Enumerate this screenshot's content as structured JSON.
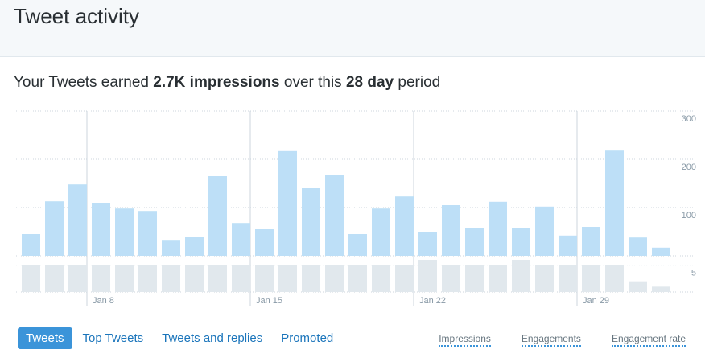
{
  "header": {
    "title": "Tweet activity"
  },
  "summary": {
    "prefix": "Your Tweets earned",
    "impressions": "2.7K impressions",
    "middle": "over this",
    "period": "28 day",
    "suffix": "period"
  },
  "chart_data": [
    {
      "type": "bar",
      "categories": [
        null,
        null,
        null,
        "Jan 8",
        null,
        null,
        null,
        null,
        null,
        null,
        "Jan 15",
        null,
        null,
        null,
        null,
        null,
        null,
        "Jan 22",
        null,
        null,
        null,
        null,
        null,
        null,
        "Jan 29",
        null,
        null,
        null
      ],
      "values": [
        45,
        113,
        148,
        110,
        98,
        93,
        33,
        40,
        165,
        68,
        55,
        217,
        140,
        168,
        45,
        98,
        123,
        50,
        105,
        57,
        112,
        57,
        102,
        42,
        60,
        218,
        38,
        17
      ],
      "color": "#bddff7",
      "ylim": [
        0,
        300
      ],
      "yticks": [
        100,
        200,
        300
      ],
      "grid": true
    },
    {
      "type": "bar",
      "values": [
        5,
        5,
        5,
        5,
        5,
        5,
        5,
        5,
        5,
        5,
        5,
        5,
        5,
        5,
        5,
        5,
        5,
        6,
        5,
        5,
        5,
        6,
        5,
        5,
        5,
        5,
        2,
        1
      ],
      "color": "#e1e8ed",
      "ylim": [
        0,
        6
      ],
      "yticks": [
        5
      ],
      "grid": true
    }
  ],
  "tabs": [
    "Tweets",
    "Top Tweets",
    "Tweets and replies",
    "Promoted"
  ],
  "metrics": [
    "Impressions",
    "Engagements",
    "Engagement rate"
  ]
}
